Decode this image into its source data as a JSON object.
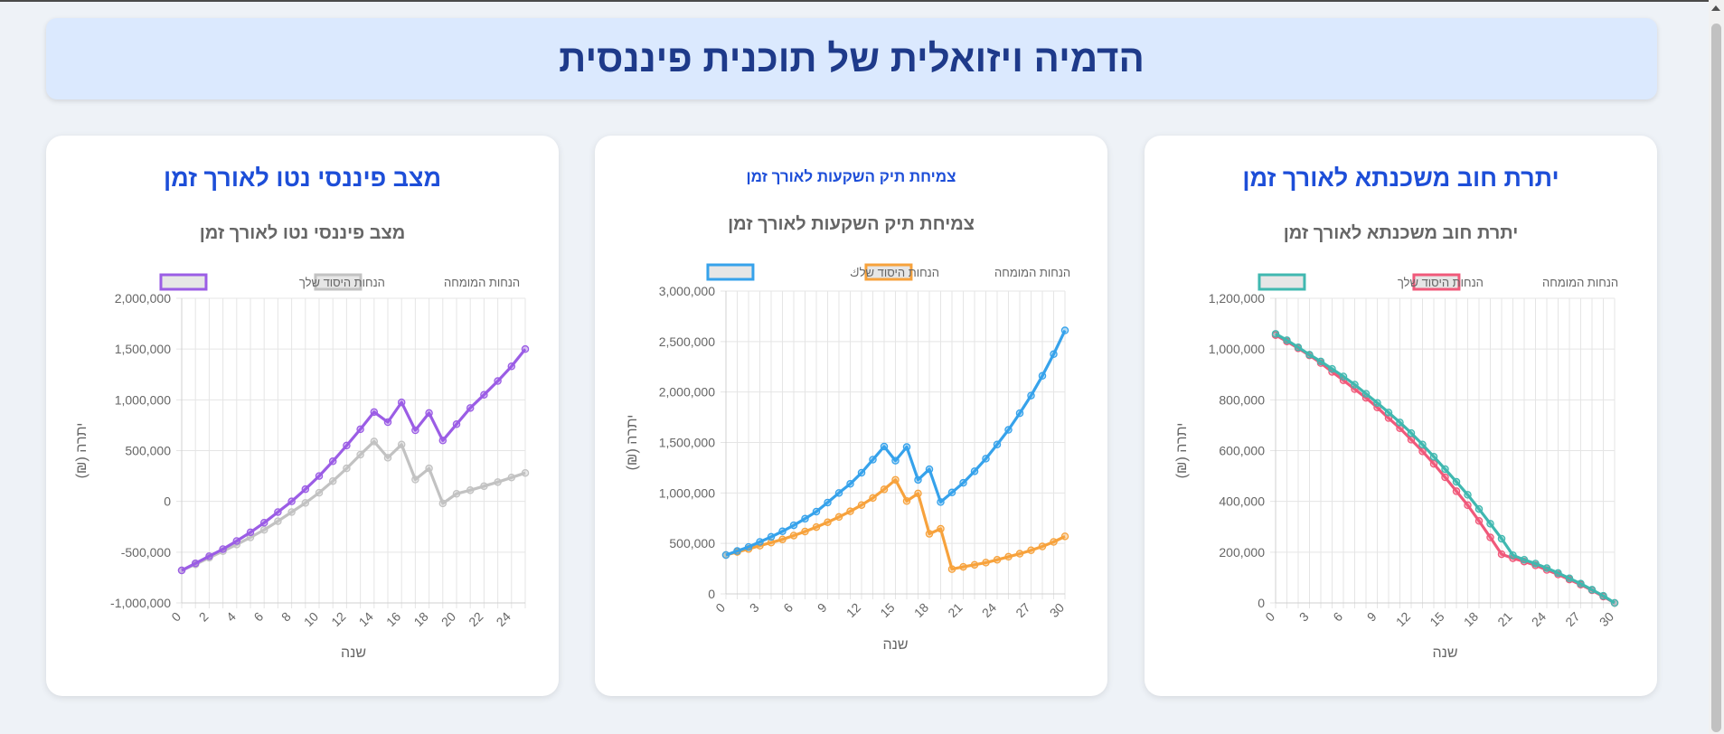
{
  "page_title": "הדמיה ויזואלית של תוכנית פיננסית",
  "cards": [
    {
      "id": "mortgage",
      "title": "יתרת חוב משכנתא לאורך זמן"
    },
    {
      "id": "investment",
      "title": "צמיחת תיק השקעות לאורך זמן"
    },
    {
      "id": "networth",
      "title": "מצב פיננסי נטו לאורך זמן"
    }
  ],
  "chart_data": [
    {
      "id": "mortgage",
      "type": "line",
      "title": "יתרת חוב משכנתא לאורך זמן",
      "xlabel": "שנה",
      "ylabel": "יתרה (₪)",
      "x": [
        0,
        1,
        2,
        3,
        4,
        5,
        6,
        7,
        8,
        9,
        10,
        11,
        12,
        13,
        14,
        15,
        16,
        17,
        18,
        19,
        20,
        21,
        22,
        23,
        24,
        25,
        26,
        27,
        28,
        29,
        30
      ],
      "xticks": [
        0,
        3,
        6,
        9,
        12,
        15,
        18,
        21,
        24,
        27,
        30
      ],
      "ylim": [
        0,
        1200000
      ],
      "yticks": [
        0,
        200000,
        400000,
        600000,
        800000,
        1000000,
        1200000
      ],
      "ytick_labels": [
        "0",
        "200,000",
        "400,000",
        "600,000",
        "800,000",
        "1,000,000",
        "1,200,000"
      ],
      "legend_order": [
        "assumed",
        "base"
      ],
      "series": [
        {
          "key": "assumed",
          "name": "הנחות המומחה",
          "color": "#f0597a",
          "values": [
            1055000,
            1030000,
            1003000,
            975000,
            945000,
            910000,
            877000,
            842000,
            808000,
            770000,
            728000,
            688000,
            643000,
            597000,
            548000,
            495000,
            440000,
            385000,
            323000,
            258000,
            192000,
            176000,
            163000,
            148000,
            130000,
            112000,
            92000,
            72000,
            50000,
            25000,
            0
          ]
        },
        {
          "key": "base",
          "name": "הנחות היסוד שלך",
          "color": "#40b8b0",
          "values": [
            1060000,
            1035000,
            1007000,
            978000,
            951000,
            922000,
            892000,
            860000,
            824000,
            788000,
            750000,
            711000,
            669000,
            624000,
            576000,
            527000,
            477000,
            426000,
            370000,
            312000,
            253000,
            188000,
            170000,
            155000,
            137000,
            118000,
            97000,
            76000,
            52000,
            28000,
            0
          ]
        }
      ]
    },
    {
      "id": "investment",
      "type": "line",
      "title": "צמיחת תיק השקעות לאורך זמן",
      "xlabel": "שנה",
      "ylabel": "יתרה (₪)",
      "x": [
        0,
        1,
        2,
        3,
        4,
        5,
        6,
        7,
        8,
        9,
        10,
        11,
        12,
        13,
        14,
        15,
        16,
        17,
        18,
        19,
        20,
        21,
        22,
        23,
        24,
        25,
        26,
        27,
        28,
        29,
        30
      ],
      "xticks": [
        0,
        3,
        6,
        9,
        12,
        15,
        18,
        21,
        24,
        27,
        30
      ],
      "ylim": [
        0,
        3000000
      ],
      "yticks": [
        0,
        500000,
        1000000,
        1500000,
        2000000,
        2500000,
        3000000
      ],
      "ytick_labels": [
        "0",
        "500,000",
        "1,000,000",
        "1,500,000",
        "2,000,000",
        "2,500,000",
        "3,000,000"
      ],
      "legend_order": [
        "assumed",
        "base"
      ],
      "series": [
        {
          "key": "assumed",
          "name": "הנחות המומחה",
          "color": "#f7a23c",
          "values": [
            385000,
            415000,
            445000,
            478000,
            508000,
            540000,
            578000,
            618000,
            662000,
            710000,
            762000,
            818000,
            880000,
            950000,
            1035000,
            1130000,
            920000,
            995000,
            595000,
            645000,
            245000,
            268000,
            288000,
            310000,
            338000,
            368000,
            398000,
            432000,
            470000,
            515000,
            570000
          ]
        },
        {
          "key": "base",
          "name": "הנחות היסוד שלك",
          "color": "#36a2eb",
          "values": [
            385000,
            425000,
            465000,
            515000,
            565000,
            620000,
            680000,
            745000,
            815000,
            905000,
            1000000,
            1090000,
            1200000,
            1330000,
            1460000,
            1320000,
            1455000,
            1130000,
            1235000,
            910000,
            1005000,
            1100000,
            1215000,
            1340000,
            1480000,
            1625000,
            1790000,
            1965000,
            2160000,
            2375000,
            2610000
          ]
        }
      ]
    },
    {
      "id": "networth",
      "type": "line",
      "title": "מצב פיננסי נטו לאורך זמן",
      "xlabel": "שנה",
      "ylabel": "יתרה (₪)",
      "x": [
        0,
        1,
        2,
        3,
        4,
        5,
        6,
        7,
        8,
        9,
        10,
        11,
        12,
        13,
        14,
        15,
        16,
        17,
        18,
        19,
        20,
        21,
        22,
        23,
        24,
        25
      ],
      "xticks": [
        0,
        2,
        4,
        6,
        8,
        10,
        12,
        14,
        16,
        18,
        20,
        22,
        24
      ],
      "xlim": [
        0,
        25
      ],
      "ylim": [
        -1000000,
        2000000
      ],
      "yticks": [
        -1000000,
        -500000,
        0,
        500000,
        1000000,
        1500000,
        2000000
      ],
      "ytick_labels": [
        "-1,000,000",
        "-500,000",
        "0",
        "500,000",
        "1,000,000",
        "1,500,000",
        "2,000,000"
      ],
      "legend_order": [
        "assumed",
        "base"
      ],
      "series": [
        {
          "key": "assumed",
          "name": "הנחות המומחה",
          "color": "#c2c2c2",
          "values": [
            -680000,
            -620000,
            -555000,
            -490000,
            -425000,
            -355000,
            -280000,
            -195000,
            -105000,
            -15000,
            85000,
            200000,
            325000,
            460000,
            590000,
            430000,
            560000,
            215000,
            325000,
            -20000,
            75000,
            110000,
            150000,
            190000,
            235000,
            280000
          ]
        },
        {
          "key": "base",
          "name": "הנחות היסוד שלך",
          "color": "#9b5de5",
          "values": [
            -680000,
            -610000,
            -540000,
            -470000,
            -390000,
            -305000,
            -210000,
            -105000,
            0,
            120000,
            250000,
            395000,
            550000,
            710000,
            880000,
            780000,
            975000,
            700000,
            870000,
            600000,
            760000,
            920000,
            1050000,
            1185000,
            1330000,
            1500000
          ]
        }
      ]
    }
  ]
}
